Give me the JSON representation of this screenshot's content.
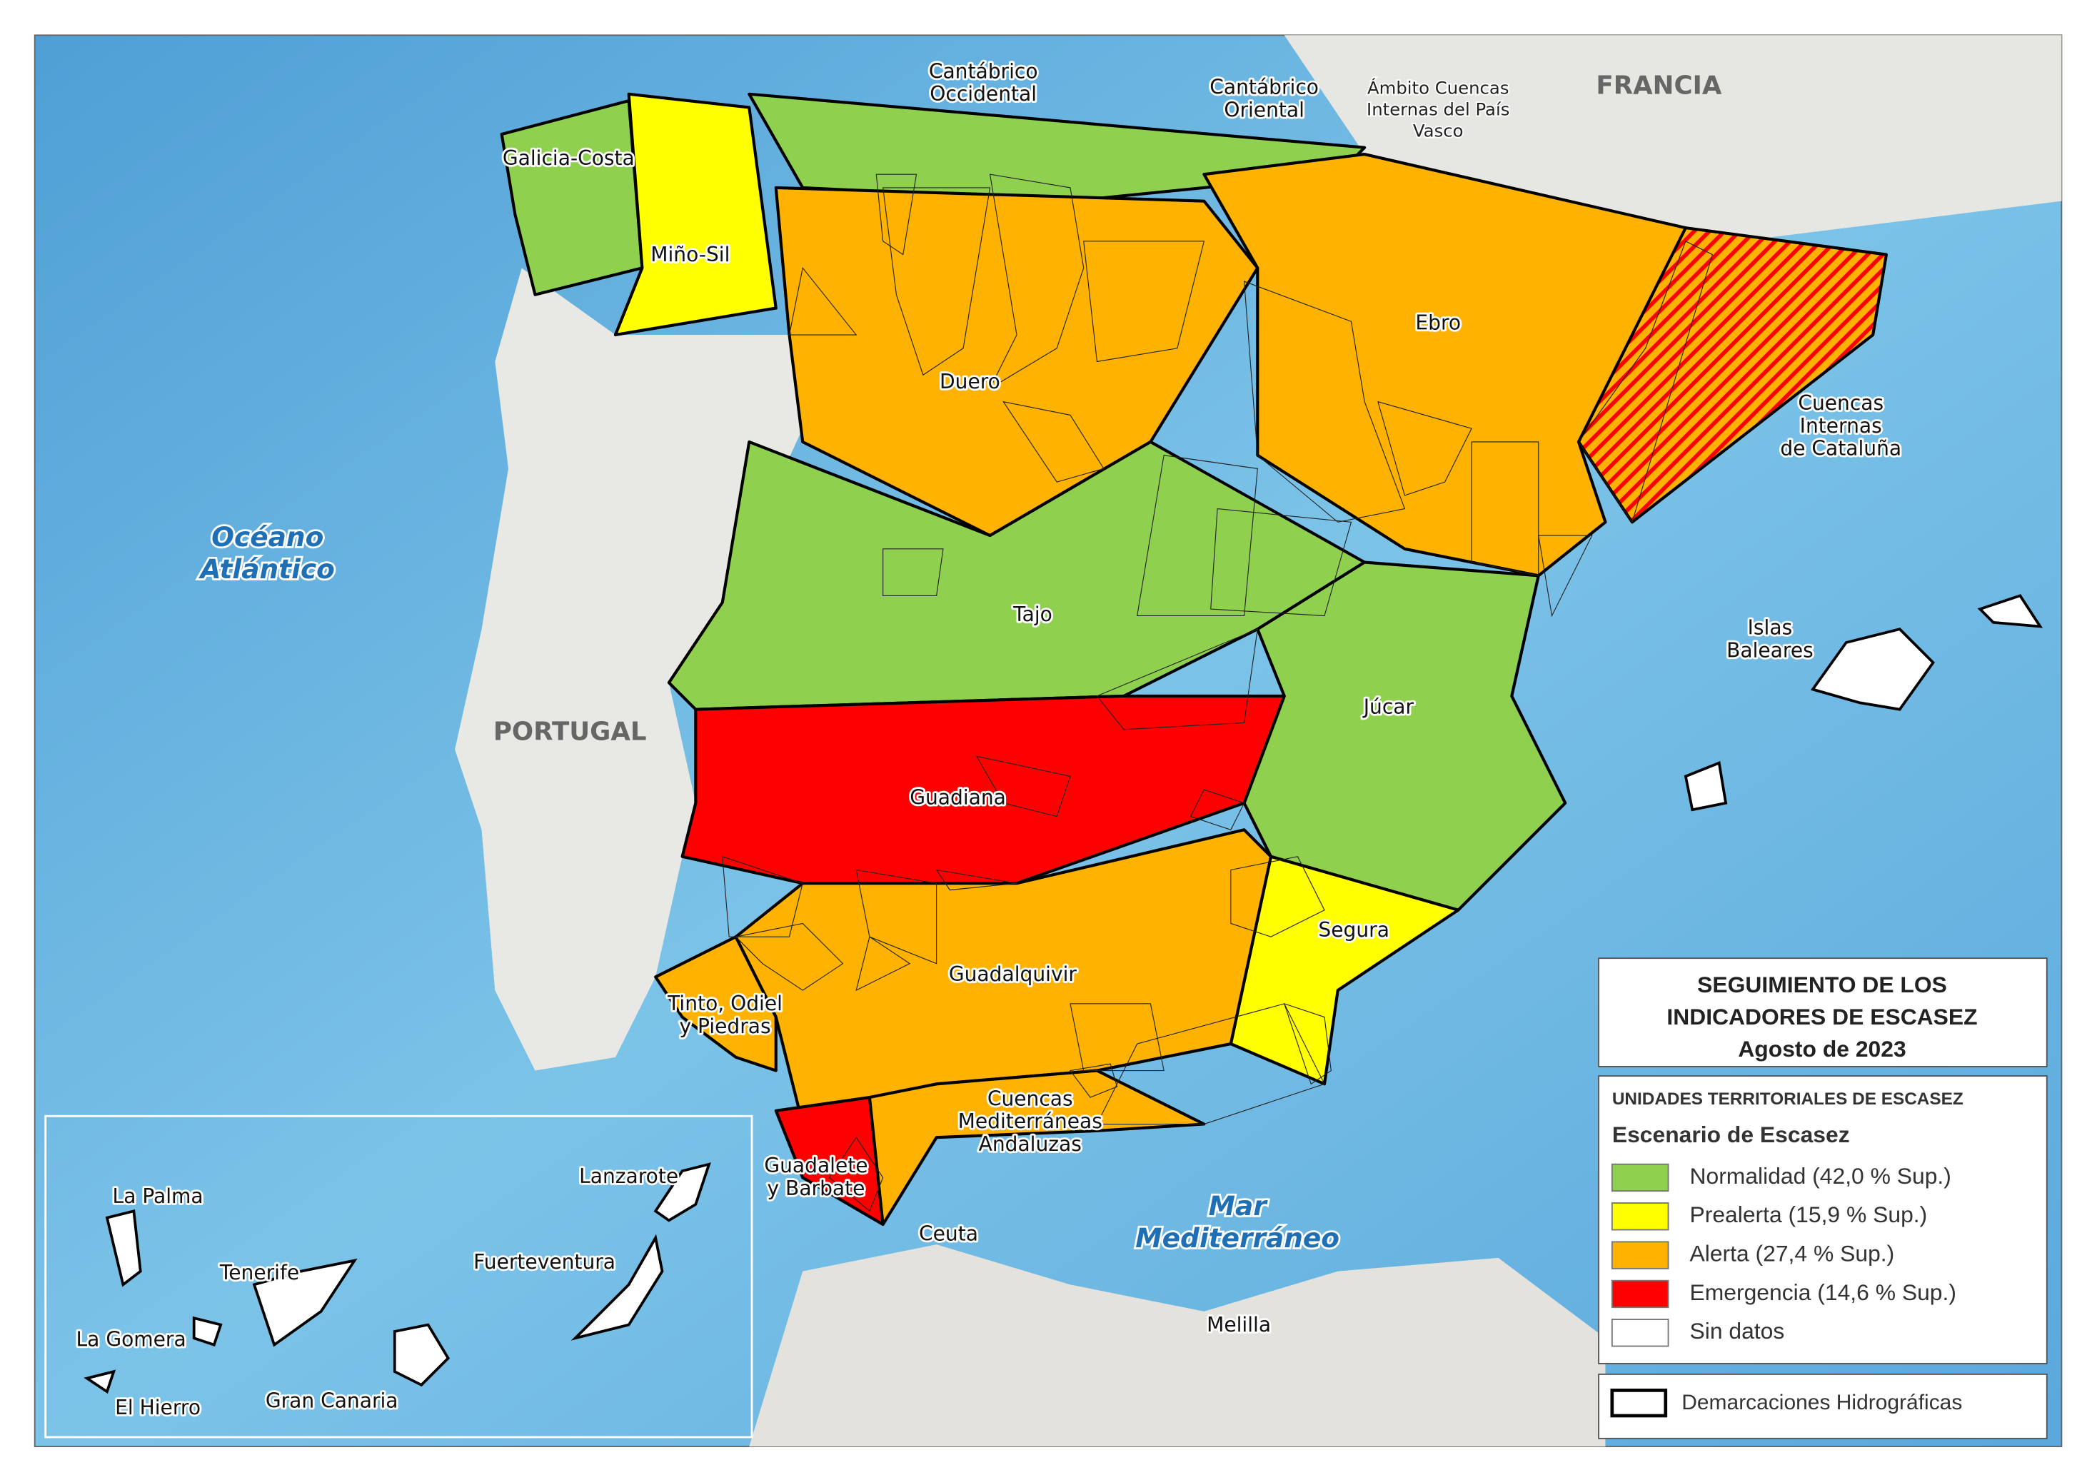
{
  "title": [
    "SEGUIMIENTO DE LOS",
    "INDICADORES DE ESCASEZ",
    "Agosto de 2023"
  ],
  "legend": {
    "heading": "UNIDADES TERRITORIALES DE ESCASEZ",
    "subheading": "Escenario de Escasez",
    "items": [
      {
        "label": "Normalidad (42,0 % Sup.)",
        "color": "#8fd14f"
      },
      {
        "label": "Prealerta (15,9 % Sup.)",
        "color": "#ffff00"
      },
      {
        "label": "Alerta (27,4 % Sup.)",
        "color": "#ffb300"
      },
      {
        "label": "Emergencia (14,6 % Sup.)",
        "color": "#ff0000"
      },
      {
        "label": "Sin datos",
        "color": "#ffffff"
      }
    ],
    "boundary": "Demarcaciones Hidrográficas"
  },
  "places": [
    {
      "lines": [
        "Cantábrico",
        "Occidental"
      ]
    },
    {
      "lines": [
        "Cantábrico",
        "Oriental"
      ]
    },
    {
      "lines": [
        "Ámbito Cuencas",
        "Internas del País",
        "Vasco"
      ]
    },
    {
      "lines": [
        "FRANCIA"
      ]
    },
    {
      "lines": [
        "Galicia-Costa"
      ]
    },
    {
      "lines": [
        "Miño-Sil"
      ]
    },
    {
      "lines": [
        "Duero"
      ]
    },
    {
      "lines": [
        "Ebro"
      ]
    },
    {
      "lines": [
        "Cuencas",
        "Internas",
        "de Cataluña"
      ]
    },
    {
      "lines": [
        "Océano",
        "Atlántico"
      ]
    },
    {
      "lines": [
        "Tajo"
      ]
    },
    {
      "lines": [
        "PORTUGAL"
      ]
    },
    {
      "lines": [
        "Islas",
        "Baleares"
      ]
    },
    {
      "lines": [
        "Júcar"
      ]
    },
    {
      "lines": [
        "Guadiana"
      ]
    },
    {
      "lines": [
        "Segura"
      ]
    },
    {
      "lines": [
        "Guadalquivir"
      ]
    },
    {
      "lines": [
        "Tinto, Odiel",
        "y Piedras"
      ]
    },
    {
      "lines": [
        "Cuencas",
        "Mediterráneas",
        "Andaluzas"
      ]
    },
    {
      "lines": [
        "Guadalete",
        "y Barbate"
      ]
    },
    {
      "lines": [
        "Ceuta"
      ]
    },
    {
      "lines": [
        "Mar",
        "Mediterráneo"
      ]
    },
    {
      "lines": [
        "Melilla"
      ]
    },
    {
      "lines": [
        "La Palma"
      ]
    },
    {
      "lines": [
        "Lanzarote"
      ]
    },
    {
      "lines": [
        "Tenerife"
      ]
    },
    {
      "lines": [
        "Fuerteventura"
      ]
    },
    {
      "lines": [
        "La Gomera"
      ]
    },
    {
      "lines": [
        "El Hierro"
      ]
    },
    {
      "lines": [
        "Gran Canaria"
      ]
    }
  ]
}
